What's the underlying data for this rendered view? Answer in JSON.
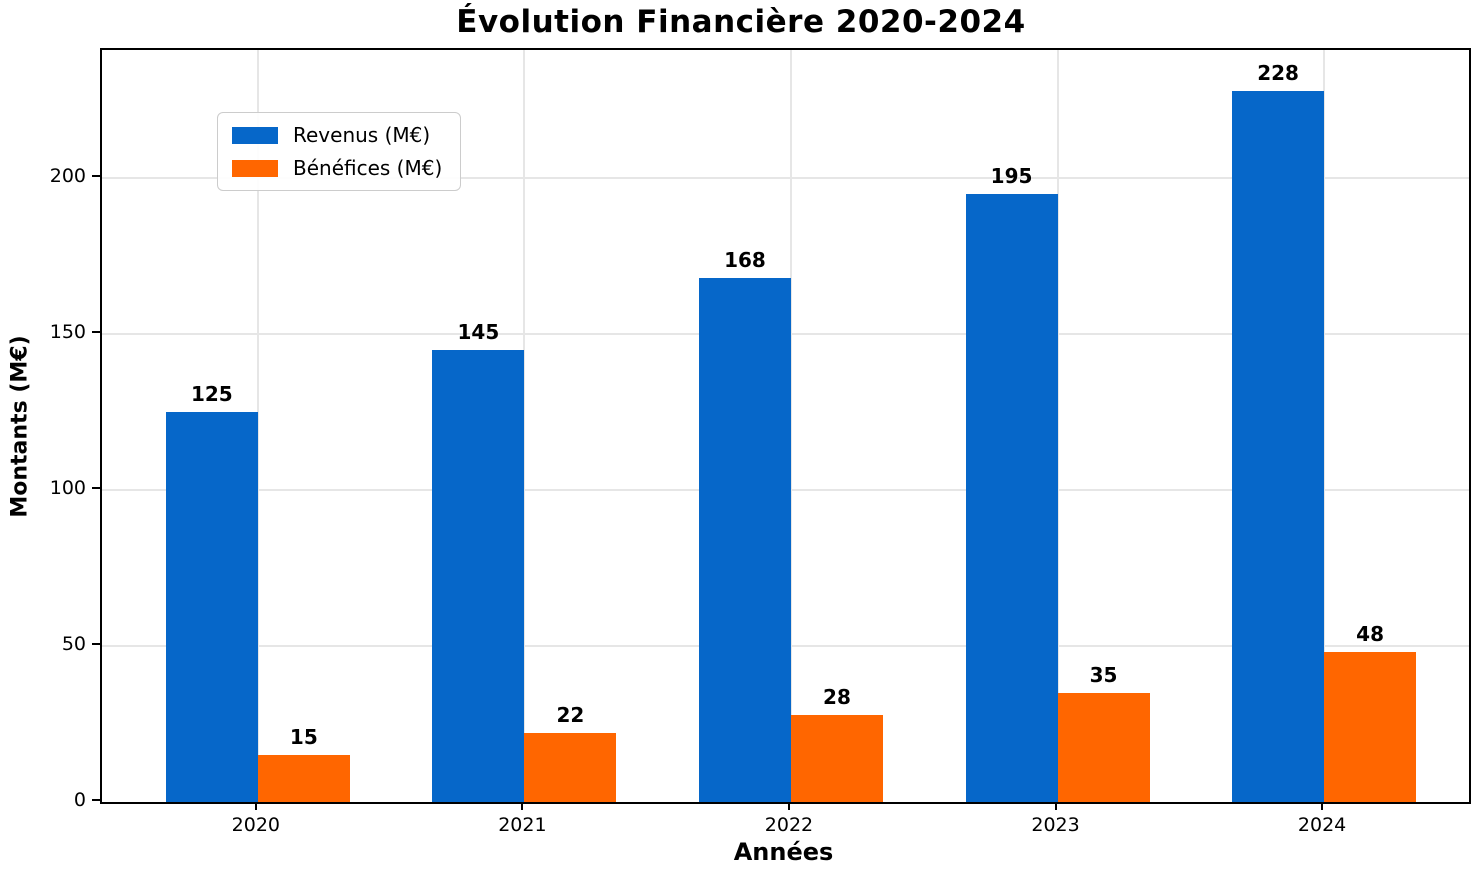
{
  "chart_data": {
    "type": "bar",
    "title": "Évolution Financière 2020-2024",
    "xlabel": "Années",
    "ylabel": "Montants (M€)",
    "categories": [
      "2020",
      "2021",
      "2022",
      "2023",
      "2024"
    ],
    "series": [
      {
        "name": "Revenus (M€)",
        "color": "#0667c9",
        "values": [
          125,
          145,
          168,
          195,
          228
        ]
      },
      {
        "name": "Bénéfices (M€)",
        "color": "#ff6600",
        "values": [
          15,
          22,
          28,
          35,
          48
        ]
      }
    ],
    "yticks": [
      0,
      50,
      100,
      150,
      200
    ],
    "ylim": [
      0,
      241
    ],
    "grid": true,
    "grid_axes": "both",
    "legend_position": "upper left",
    "bar_labels": true,
    "colors": {
      "revenus": "#0667c9",
      "benefices": "#ff6600",
      "grid": "#e6e6e6",
      "spine": "#000000",
      "background": "#ffffff"
    }
  }
}
